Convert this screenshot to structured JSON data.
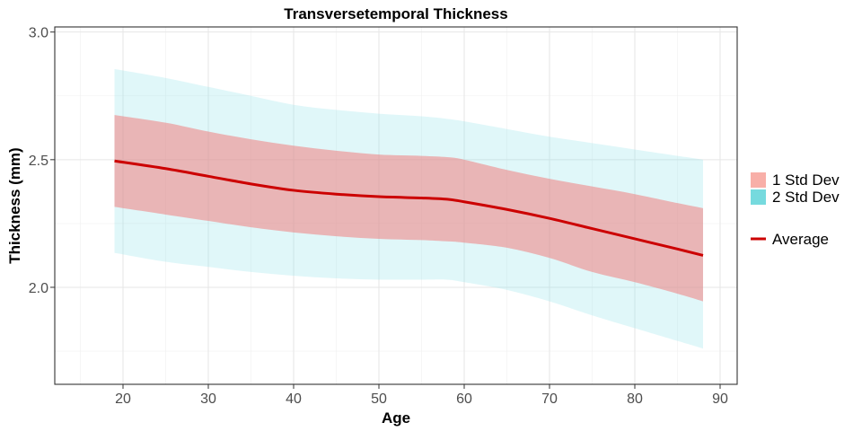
{
  "chart_data": {
    "type": "area",
    "title": "Transversetemporal Thickness",
    "xlabel": "Age",
    "ylabel": "Thickness (mm)",
    "xlim": [
      12,
      92
    ],
    "ylim": [
      1.62,
      3.02
    ],
    "x_ticks": [
      20,
      30,
      40,
      50,
      60,
      70,
      80,
      90
    ],
    "y_ticks": [
      2.0,
      2.5,
      3.0
    ],
    "y_tick_labels": [
      "2.0",
      "2.5",
      "3.0"
    ],
    "grid": true,
    "legend_position": "right",
    "x": [
      19,
      25,
      30,
      35,
      40,
      45,
      50,
      55,
      58,
      60,
      65,
      70,
      75,
      80,
      85,
      88
    ],
    "series": [
      {
        "name": "Average",
        "values": [
          2.495,
          2.465,
          2.435,
          2.405,
          2.38,
          2.365,
          2.355,
          2.35,
          2.345,
          2.335,
          2.305,
          2.27,
          2.23,
          2.19,
          2.15,
          2.125
        ]
      }
    ],
    "bands": [
      {
        "name": "2 Std Dev",
        "lower": [
          2.135,
          2.1,
          2.08,
          2.06,
          2.045,
          2.035,
          2.03,
          2.03,
          2.03,
          2.02,
          1.99,
          1.945,
          1.89,
          1.84,
          1.79,
          1.76
        ],
        "upper": [
          2.855,
          2.82,
          2.785,
          2.75,
          2.715,
          2.695,
          2.68,
          2.67,
          2.66,
          2.65,
          2.62,
          2.59,
          2.565,
          2.54,
          2.515,
          2.5
        ]
      },
      {
        "name": "1 Std Dev",
        "lower": [
          2.315,
          2.285,
          2.26,
          2.235,
          2.215,
          2.2,
          2.19,
          2.185,
          2.18,
          2.175,
          2.155,
          2.115,
          2.06,
          2.02,
          1.975,
          1.945
        ],
        "upper": [
          2.675,
          2.645,
          2.61,
          2.58,
          2.555,
          2.535,
          2.52,
          2.515,
          2.51,
          2.5,
          2.46,
          2.425,
          2.395,
          2.365,
          2.33,
          2.31
        ]
      }
    ],
    "legend": [
      {
        "name": "1 Std Dev",
        "kind": "fill"
      },
      {
        "name": "2 Std Dev",
        "kind": "fill"
      },
      {
        "name": "Average",
        "kind": "line"
      }
    ],
    "colors": {
      "1 Std Dev": "#F08080",
      "2 Std Dev": "#7FDFE6",
      "Average": "#CC0000",
      "legend_1sd": "#F8AFA8",
      "legend_2sd": "#76DADE"
    }
  }
}
